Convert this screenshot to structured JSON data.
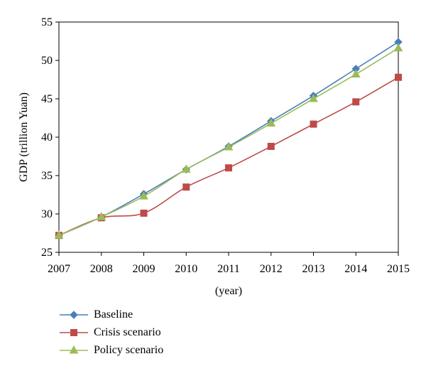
{
  "chart_data": {
    "type": "line",
    "x": [
      2007,
      2008,
      2009,
      2010,
      2011,
      2012,
      2013,
      2014,
      2015
    ],
    "xlabel": "(year)",
    "ylabel": "GDP (trillion Yuan)",
    "ylim": [
      25,
      55
    ],
    "yticks": [
      25,
      30,
      35,
      40,
      45,
      50,
      55
    ],
    "grid": false,
    "legend_position": "bottom-left",
    "series": [
      {
        "name": "Baseline",
        "color": "#4a7ebb",
        "marker": "diamond",
        "values": [
          27.2,
          29.6,
          32.6,
          35.8,
          38.8,
          42.1,
          45.4,
          48.9,
          52.4
        ]
      },
      {
        "name": "Crisis scenario",
        "color": "#be4b48",
        "marker": "square",
        "values": [
          27.2,
          29.5,
          30.1,
          33.5,
          36.0,
          38.8,
          41.7,
          44.6,
          47.8
        ]
      },
      {
        "name": "Policy scenario",
        "color": "#9bbb59",
        "marker": "triangle",
        "values": [
          27.2,
          29.6,
          32.3,
          35.8,
          38.7,
          41.8,
          45.0,
          48.2,
          51.6
        ]
      }
    ]
  }
}
